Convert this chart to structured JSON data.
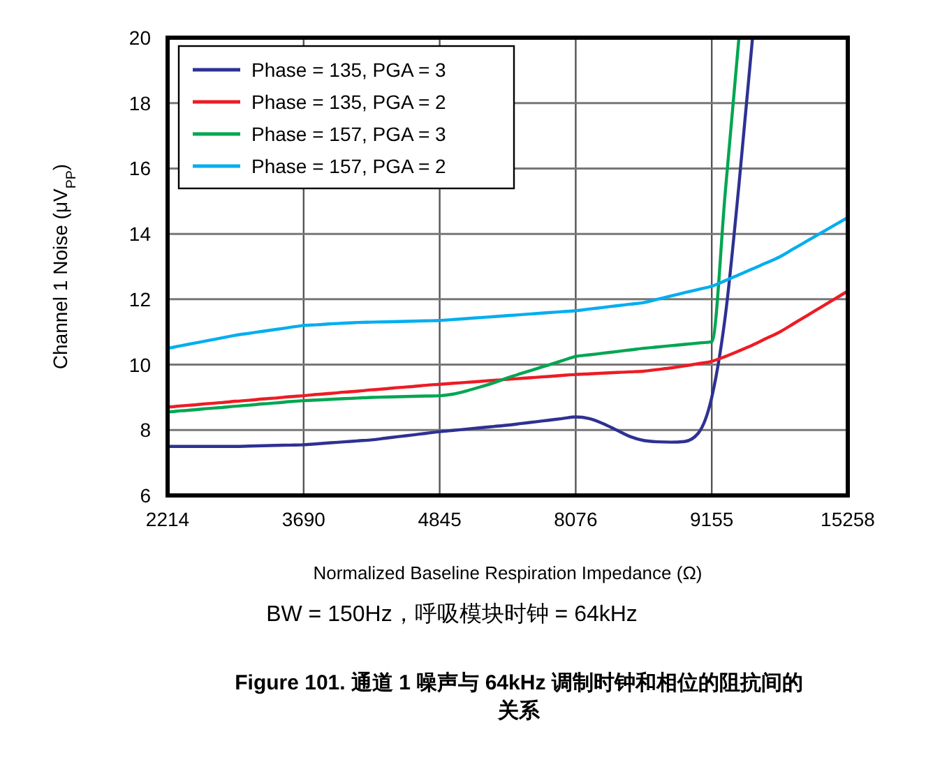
{
  "chart_data": {
    "type": "line",
    "title": "Figure 101. 通道 1 噪声与 64kHz 调制时钟和相位的阻抗间的关系",
    "xlabel": "Normalized Baseline Respiration Impedance (Ω)",
    "ylabel": "Channel 1 Noise (μV$_{PP}$)",
    "annotations": [
      "BW = 150Hz，呼吸模块时钟 = 64kHz"
    ],
    "categories": [
      "2214",
      null,
      null,
      null,
      null,
      null,
      null,
      null,
      null,
      null,
      "3690",
      null,
      null,
      null,
      null,
      null,
      null,
      null,
      null,
      null,
      "4845",
      null,
      null,
      null,
      null,
      null,
      null,
      null,
      null,
      null,
      "8076",
      null,
      null,
      null,
      null,
      null,
      null,
      null,
      null,
      null,
      "9155",
      null,
      null,
      null,
      null,
      null,
      null,
      null,
      null,
      null,
      "15258"
    ],
    "ylim": [
      6,
      20
    ],
    "yticks": [
      6,
      8,
      10,
      12,
      14,
      16,
      18,
      20
    ],
    "grid": true,
    "legend": "top left",
    "marker": "none",
    "line_style": "solid",
    "series": [
      {
        "name": "Phase = 135, PGA = 3",
        "color": "#2e3192",
        "values": [
          7.5,
          7.5,
          7.5,
          7.5,
          7.5,
          7.5,
          7.51,
          7.52,
          7.53,
          7.54,
          7.55,
          7.58,
          7.61,
          7.64,
          7.67,
          7.7,
          7.75,
          7.8,
          7.85,
          7.9,
          7.95,
          7.99,
          8.03,
          8.07,
          8.11,
          8.15,
          8.2,
          8.25,
          8.3,
          8.35,
          8.4,
          8.35,
          8.2,
          8.0,
          7.8,
          7.68,
          7.64,
          7.63,
          7.65,
          7.9,
          9.0,
          11.5,
          15.5,
          20,
          null,
          null,
          null,
          null,
          null,
          null,
          null
        ]
      },
      {
        "name": "Phase = 135, PGA = 2",
        "color": "#ed1c24",
        "values": [
          8.7,
          8.74,
          8.77,
          8.81,
          8.84,
          8.88,
          8.91,
          8.95,
          8.98,
          9.02,
          9.05,
          9.09,
          9.12,
          9.16,
          9.19,
          9.23,
          9.26,
          9.3,
          9.33,
          9.37,
          9.4,
          9.43,
          9.46,
          9.49,
          9.52,
          9.55,
          9.58,
          9.61,
          9.64,
          9.67,
          9.7,
          9.72,
          9.74,
          9.76,
          9.78,
          9.8,
          9.85,
          9.9,
          9.96,
          10.03,
          10.1,
          10.25,
          10.42,
          10.6,
          10.8,
          11.0,
          11.25,
          11.5,
          11.75,
          12.0,
          12.25
        ]
      },
      {
        "name": "Phase = 157, PGA = 3",
        "color": "#00a651",
        "values": [
          8.55,
          8.59,
          8.62,
          8.66,
          8.69,
          8.73,
          8.76,
          8.8,
          8.83,
          8.87,
          8.9,
          8.92,
          8.94,
          8.96,
          8.98,
          9.0,
          9.01,
          9.02,
          9.03,
          9.04,
          9.05,
          9.1,
          9.2,
          9.32,
          9.45,
          9.6,
          9.73,
          9.86,
          9.99,
          10.12,
          10.25,
          10.3,
          10.35,
          10.4,
          10.45,
          10.5,
          10.54,
          10.58,
          10.62,
          10.66,
          10.7,
          15.3,
          20,
          null,
          null,
          null,
          null,
          null,
          null,
          null,
          null
        ]
      },
      {
        "name": "Phase = 157, PGA = 2",
        "color": "#00aeef",
        "values": [
          10.5,
          10.58,
          10.66,
          10.74,
          10.82,
          10.9,
          10.96,
          11.02,
          11.08,
          11.14,
          11.2,
          11.22,
          11.25,
          11.27,
          11.29,
          11.3,
          11.31,
          11.32,
          11.33,
          11.34,
          11.35,
          11.38,
          11.41,
          11.44,
          11.47,
          11.5,
          11.53,
          11.56,
          11.59,
          11.62,
          11.65,
          11.7,
          11.75,
          11.8,
          11.85,
          11.9,
          12.0,
          12.1,
          12.2,
          12.3,
          12.4,
          12.57,
          12.75,
          12.93,
          13.11,
          13.3,
          13.54,
          13.78,
          14.02,
          14.26,
          14.5
        ]
      }
    ]
  }
}
